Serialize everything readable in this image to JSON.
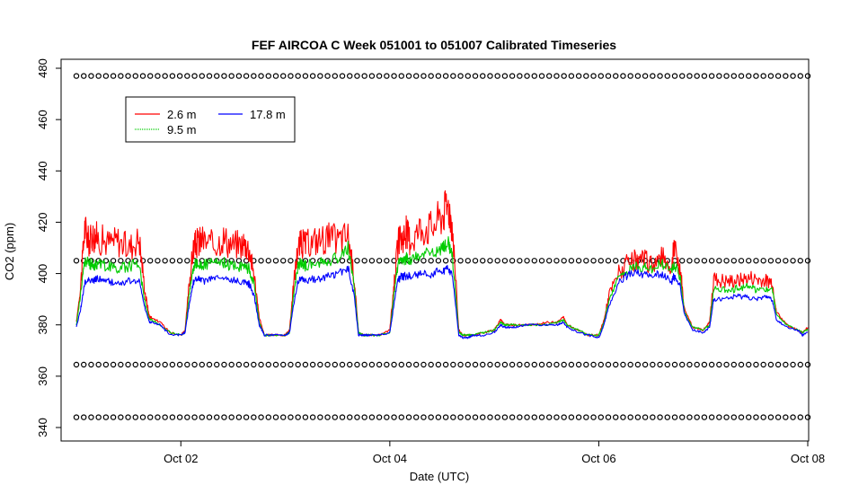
{
  "chart_data": {
    "type": "line",
    "title": "FEF AIRCOA C  Week 051001 to 051007  Calibrated Timeseries",
    "xlabel": "Date (UTC)",
    "ylabel": "CO2 (ppm)",
    "xlim": [
      1.0,
      8.0
    ],
    "ylim": [
      340,
      482
    ],
    "x_ticks": [
      {
        "value": 2,
        "label": "Oct 02"
      },
      {
        "value": 4,
        "label": "Oct 04"
      },
      {
        "value": 6,
        "label": "Oct 06"
      },
      {
        "value": 8,
        "label": "Oct 08"
      }
    ],
    "y_ticks": [
      340,
      360,
      380,
      400,
      420,
      440,
      460,
      480
    ],
    "legend": {
      "placement": "top-left",
      "entries": [
        {
          "name": "2.6 m",
          "color": "#ff0000"
        },
        {
          "name": "9.5 m",
          "color": "#00cc00"
        },
        {
          "name": "17.8 m",
          "color": "#0000ff"
        }
      ]
    },
    "series": [
      {
        "name": "2.6 m",
        "color": "#ff0000",
        "x": [
          1.0,
          1.04,
          1.08,
          1.12,
          1.16,
          1.2,
          1.3,
          1.4,
          1.5,
          1.6,
          1.66,
          1.7,
          1.72,
          1.8,
          1.9,
          2.0,
          2.04,
          2.08,
          2.12,
          2.16,
          2.2,
          2.3,
          2.4,
          2.5,
          2.6,
          2.65,
          2.7,
          2.75,
          2.8,
          2.9,
          3.0,
          3.04,
          3.08,
          3.12,
          3.16,
          3.2,
          3.3,
          3.4,
          3.5,
          3.6,
          3.66,
          3.7,
          3.75,
          3.8,
          3.9,
          4.0,
          4.04,
          4.08,
          4.12,
          4.16,
          4.2,
          4.3,
          4.4,
          4.5,
          4.56,
          4.6,
          4.66,
          4.7,
          4.75,
          4.8,
          4.9,
          5.0,
          5.06,
          5.1,
          5.14,
          5.2,
          5.3,
          5.4,
          5.5,
          5.6,
          5.66,
          5.7,
          5.8,
          5.9,
          6.0,
          6.05,
          6.1,
          6.2,
          6.3,
          6.4,
          6.5,
          6.6,
          6.7,
          6.72,
          6.78,
          6.82,
          6.9,
          7.0,
          7.06,
          7.1,
          7.2,
          7.3,
          7.4,
          7.5,
          7.6,
          7.66,
          7.7,
          7.8,
          7.9,
          7.95,
          8.0
        ],
        "y": [
          381,
          395,
          418,
          412,
          415,
          414,
          412,
          413,
          410,
          414,
          392,
          383,
          383,
          381,
          377,
          376,
          378,
          396,
          410,
          412,
          413,
          411,
          414,
          411,
          412,
          410,
          400,
          383,
          376,
          376,
          376,
          378,
          396,
          410,
          412,
          411,
          413,
          414,
          413,
          415,
          398,
          377,
          376,
          376,
          376,
          378,
          396,
          412,
          414,
          416,
          413,
          418,
          418,
          423,
          427,
          418,
          378,
          376,
          376,
          376,
          377,
          378,
          382,
          380,
          380,
          380,
          380,
          380,
          381,
          381,
          383,
          380,
          378,
          376,
          376,
          382,
          392,
          401,
          404,
          405,
          404,
          406,
          403,
          410,
          402,
          386,
          379,
          378,
          381,
          398,
          397,
          397,
          398,
          398,
          397,
          397,
          385,
          380,
          378,
          377,
          379
        ]
      },
      {
        "name": "9.5 m",
        "color": "#00cc00",
        "x": [
          1.0,
          1.04,
          1.08,
          1.12,
          1.16,
          1.2,
          1.3,
          1.4,
          1.5,
          1.6,
          1.66,
          1.7,
          1.72,
          1.8,
          1.9,
          2.0,
          2.04,
          2.08,
          2.12,
          2.16,
          2.2,
          2.3,
          2.4,
          2.5,
          2.6,
          2.65,
          2.7,
          2.75,
          2.8,
          2.9,
          3.0,
          3.04,
          3.08,
          3.12,
          3.16,
          3.2,
          3.3,
          3.4,
          3.5,
          3.6,
          3.66,
          3.7,
          3.75,
          3.8,
          3.9,
          4.0,
          4.04,
          4.08,
          4.12,
          4.16,
          4.2,
          4.3,
          4.4,
          4.5,
          4.56,
          4.6,
          4.66,
          4.7,
          4.75,
          4.8,
          4.9,
          5.0,
          5.06,
          5.1,
          5.14,
          5.2,
          5.3,
          5.4,
          5.5,
          5.6,
          5.66,
          5.7,
          5.8,
          5.9,
          6.0,
          6.05,
          6.1,
          6.2,
          6.3,
          6.4,
          6.5,
          6.6,
          6.7,
          6.72,
          6.78,
          6.82,
          6.9,
          7.0,
          7.06,
          7.1,
          7.2,
          7.3,
          7.4,
          7.5,
          7.6,
          7.66,
          7.7,
          7.8,
          7.9,
          7.95,
          8.0
        ],
        "y": [
          380,
          392,
          405,
          404,
          403,
          404,
          403,
          402,
          403,
          404,
          388,
          382,
          382,
          380,
          377,
          376,
          377,
          392,
          403,
          404,
          403,
          404,
          404,
          403,
          403,
          402,
          396,
          381,
          376,
          376,
          376,
          377,
          392,
          403,
          404,
          403,
          404,
          405,
          406,
          410,
          395,
          377,
          376,
          376,
          376,
          377,
          392,
          404,
          405,
          406,
          405,
          408,
          408,
          410,
          412,
          406,
          377,
          376,
          376,
          376,
          377,
          378,
          381,
          380,
          380,
          380,
          380,
          380,
          380,
          381,
          382,
          380,
          378,
          376,
          376,
          381,
          390,
          399,
          402,
          403,
          402,
          404,
          401,
          404,
          398,
          385,
          379,
          378,
          380,
          394,
          394,
          394,
          395,
          394,
          394,
          394,
          384,
          380,
          378,
          377,
          378
        ]
      },
      {
        "name": "17.8 m",
        "color": "#0000ff",
        "x": [
          1.0,
          1.04,
          1.08,
          1.12,
          1.16,
          1.2,
          1.3,
          1.4,
          1.5,
          1.6,
          1.66,
          1.7,
          1.72,
          1.8,
          1.9,
          2.0,
          2.04,
          2.08,
          2.12,
          2.16,
          2.2,
          2.3,
          2.4,
          2.5,
          2.6,
          2.65,
          2.7,
          2.75,
          2.8,
          2.9,
          3.0,
          3.04,
          3.08,
          3.12,
          3.16,
          3.2,
          3.3,
          3.4,
          3.5,
          3.6,
          3.66,
          3.7,
          3.75,
          3.8,
          3.9,
          4.0,
          4.04,
          4.08,
          4.12,
          4.16,
          4.2,
          4.3,
          4.4,
          4.5,
          4.56,
          4.6,
          4.66,
          4.7,
          4.75,
          4.8,
          4.9,
          5.0,
          5.06,
          5.1,
          5.14,
          5.2,
          5.3,
          5.4,
          5.5,
          5.6,
          5.66,
          5.7,
          5.8,
          5.9,
          6.0,
          6.05,
          6.1,
          6.2,
          6.3,
          6.4,
          6.5,
          6.6,
          6.7,
          6.72,
          6.78,
          6.82,
          6.9,
          7.0,
          7.06,
          7.1,
          7.2,
          7.3,
          7.4,
          7.5,
          7.6,
          7.66,
          7.7,
          7.8,
          7.9,
          7.95,
          8.0
        ],
        "y": [
          379,
          386,
          396,
          398,
          397,
          398,
          397,
          396,
          397,
          397,
          386,
          381,
          381,
          380,
          376,
          376,
          377,
          388,
          397,
          398,
          397,
          398,
          398,
          397,
          397,
          396,
          392,
          380,
          376,
          376,
          376,
          377,
          388,
          397,
          398,
          397,
          398,
          399,
          400,
          402,
          391,
          376,
          376,
          376,
          376,
          377,
          388,
          398,
          399,
          399,
          399,
          400,
          400,
          401,
          402,
          399,
          376,
          375,
          375,
          376,
          376,
          377,
          380,
          379,
          379,
          379,
          380,
          380,
          380,
          380,
          381,
          379,
          377,
          376,
          375,
          380,
          388,
          397,
          400,
          400,
          399,
          400,
          397,
          399,
          395,
          384,
          378,
          377,
          379,
          390,
          390,
          391,
          391,
          390,
          391,
          390,
          382,
          379,
          378,
          376,
          377
        ]
      },
      {
        "name": "",
        "color": "#000000",
        "marker": "open-circle",
        "x_start": 1.0,
        "x_end": 8.0,
        "points_per_row": 100,
        "rows_y": [
          477,
          405,
          364.5,
          344
        ]
      }
    ]
  }
}
